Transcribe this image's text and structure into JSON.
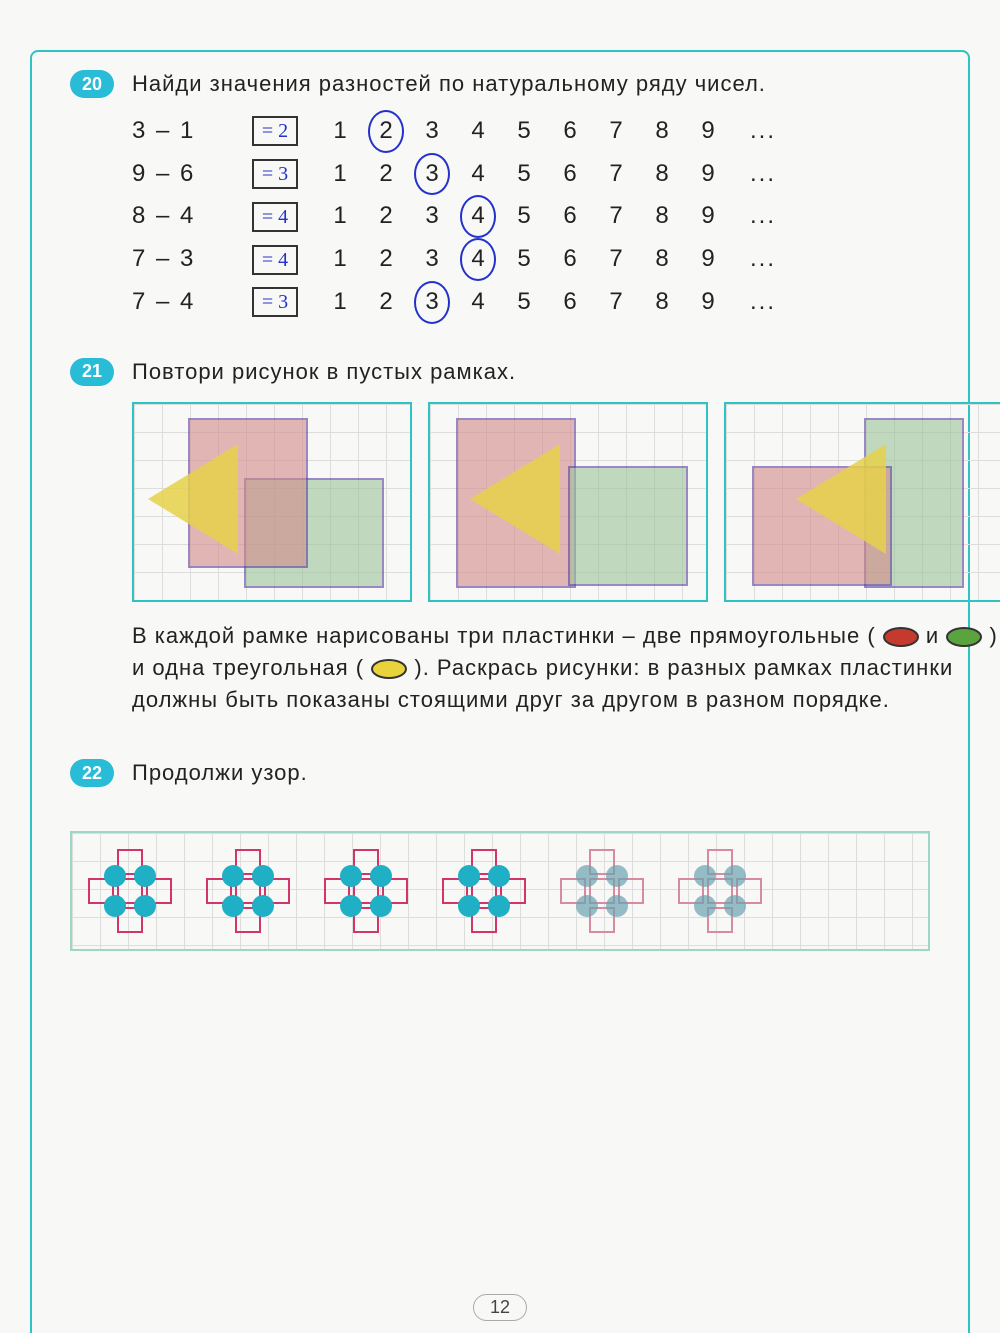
{
  "page_number": "12",
  "tasks": {
    "t20": {
      "badge": "20",
      "text": "Найди значения разностей по натуральному ряду чисел.",
      "rows": [
        {
          "expr": "3 – 1",
          "answer": "= 2",
          "circled_index": 1
        },
        {
          "expr": "9 – 6",
          "answer": "= 3",
          "circled_index": 2
        },
        {
          "expr": "8 – 4",
          "answer": "= 4",
          "circled_index": 3
        },
        {
          "expr": "7 – 3",
          "answer": "= 4",
          "circled_index": 3
        },
        {
          "expr": "7 – 4",
          "answer": "= 3",
          "circled_index": 2
        }
      ],
      "number_line": [
        "1",
        "2",
        "3",
        "4",
        "5",
        "6",
        "7",
        "8",
        "9"
      ],
      "trailing": "..."
    },
    "t21": {
      "badge": "21",
      "text": "Повтори рисунок в пустых рамках.",
      "frame_count": 3,
      "colors": {
        "red": "#d48a8a",
        "green": "#9cc49a",
        "yellow": "#e6d14a",
        "outline": "#5b3fa6"
      },
      "paragraph_parts": {
        "p1": "В каждой рамке нарисованы три пластинки – две прямоугольные (",
        "p2": " и ",
        "p3": ") и одна треугольная (",
        "p4": "). Раскрась рисунки: в разных рамках пластинки должны быть показаны стоящими друг за другом в разном порядке."
      }
    },
    "t22": {
      "badge": "22",
      "text": "Продолжи узор.",
      "pattern": {
        "unit_count": 6,
        "printed_count": 4,
        "square_color": "#d1356b",
        "circle_color": "#1fb0c6",
        "grid_size": 28
      }
    }
  }
}
